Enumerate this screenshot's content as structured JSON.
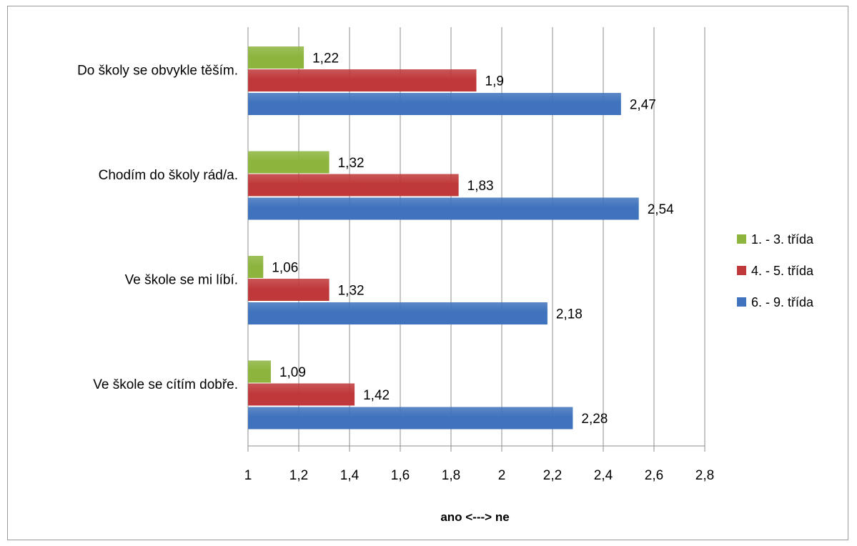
{
  "chart_data": {
    "type": "bar",
    "orientation": "horizontal",
    "categories": [
      "Do školy se obvykle těším.",
      "Chodím do školy rád/a.",
      "Ve škole se mi líbí.",
      "Ve škole se cítím dobře."
    ],
    "series": [
      {
        "name": "1. - 3. třída",
        "color": "#8db53e",
        "values": [
          1.22,
          1.32,
          1.06,
          1.09
        ],
        "labels": [
          "1,22",
          "1,32",
          "1,06",
          "1,09"
        ]
      },
      {
        "name": "4. - 5. třída",
        "color": "#c0393a",
        "values": [
          1.9,
          1.83,
          1.32,
          1.42
        ],
        "labels": [
          "1,9",
          "1,83",
          "1,32",
          "1,42"
        ]
      },
      {
        "name": "6. - 9. třída",
        "color": "#3f73bd",
        "values": [
          2.47,
          2.54,
          2.18,
          2.28
        ],
        "labels": [
          "2,47",
          "2,54",
          "2,18",
          "2,28"
        ]
      }
    ],
    "xlim": [
      1,
      2.8
    ],
    "xticks": [
      1,
      1.2,
      1.4,
      1.6,
      1.8,
      2,
      2.2,
      2.4,
      2.6,
      2.8
    ],
    "xtick_labels": [
      "1",
      "1,2",
      "1,4",
      "1,6",
      "1,8",
      "2",
      "2,2",
      "2,4",
      "2,6",
      "2,8"
    ],
    "xlabel": "ano <---> ne",
    "grid": true,
    "legend_position": "right"
  }
}
